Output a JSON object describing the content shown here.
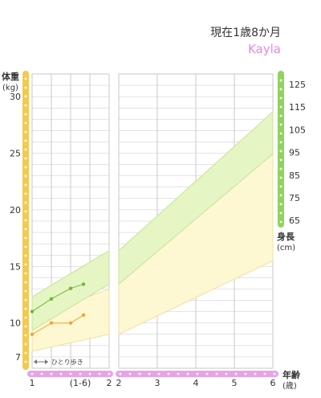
{
  "header": {
    "age_text": "現在1歳8か月",
    "child_name": "Kayla"
  },
  "colors": {
    "weight_rail": "#f5c84e",
    "height_rail": "#8fd35e",
    "age_rail": "#e7a3e8",
    "weight_band": "#fdf8d2",
    "weight_band_edge": "#f2dda0",
    "height_band": "#e5f5c3",
    "height_band_edge": "#c8e39a",
    "weight_line": "#f4a23c",
    "height_line": "#6fb63c",
    "grid": "#c8c8c8"
  },
  "chart_data": {
    "type": "line",
    "weight_axis": {
      "label": "体重",
      "unit": "(kg)",
      "ticks": [
        30,
        25,
        20,
        15,
        10,
        7
      ],
      "ylim": [
        6,
        32
      ]
    },
    "height_axis": {
      "label": "身長",
      "unit": "(cm)",
      "ticks": [
        125,
        115,
        105,
        95,
        85,
        75,
        65
      ],
      "ylim": [
        62,
        132
      ]
    },
    "age_axis": {
      "label": "年齢",
      "unit": "(歳)",
      "left_panel": {
        "range_months": [
          12,
          24
        ],
        "ticks": [
          "1",
          "(1-6)",
          "2"
        ]
      },
      "right_panel": {
        "range_years": [
          2,
          6
        ],
        "ticks": [
          "2",
          "3",
          "4",
          "5",
          "6"
        ]
      }
    },
    "walking_marker": {
      "label": "ひとり歩き",
      "months": [
        12,
        15
      ]
    },
    "series": [
      {
        "x_months": [
          12,
          15,
          18,
          20
        ],
        "weight_kg": [
          9.0,
          10.0,
          10.0,
          10.7
        ]
      },
      {
        "x_months": [
          12,
          15,
          18,
          20
        ],
        "height_cm": [
          75.5,
          78.5,
          81.0,
          82.0
        ]
      }
    ],
    "weight_band": {
      "left_upper": [
        10.5,
        13.0
      ],
      "left_lower": [
        7.5,
        9.0
      ],
      "right_upper": [
        13.5,
        28.0
      ],
      "right_lower": [
        9.0,
        15.5
      ]
    },
    "height_band": {
      "left_upper": [
        79.0,
        90.0
      ],
      "left_lower": [
        71.0,
        82.0
      ],
      "right_upper": [
        90.0,
        123.0
      ],
      "right_lower": [
        82.0,
        113.0
      ]
    }
  }
}
